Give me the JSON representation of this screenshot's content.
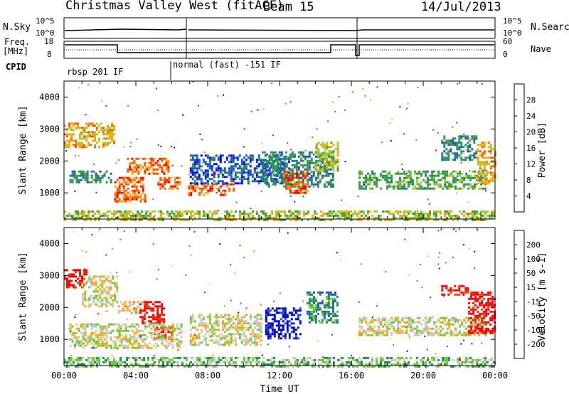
{
  "header": {
    "title": "Christmas Valley West (fitACF)",
    "beam": "Beam 15",
    "date": "14/Jul/2013"
  },
  "top_panels": {
    "nsky_label": "N.Sky",
    "nsky_ticks": [
      "10^5",
      "10^0"
    ],
    "nsearch_label": "N.Search",
    "nsearch_ticks": [
      "10^5",
      "10^0"
    ],
    "freq_label_1": "Freq.",
    "freq_label_2": "[MHz]",
    "freq_ticks": [
      "18",
      "8"
    ],
    "nave_label": "Nave",
    "nave_ticks": [
      "60",
      "0"
    ],
    "cpid_label": "CPID",
    "cpid_modes": [
      "rbsp 201 IF",
      "normal (fast) -151 IF"
    ]
  },
  "chart_data": [
    {
      "type": "heatmap",
      "name": "power",
      "ylabel": "Slant Range [km]",
      "ylim": [
        180,
        4500
      ],
      "yticks": [
        1000,
        2000,
        3000,
        4000
      ],
      "xlim": [
        0,
        24
      ],
      "colorbar": {
        "label": "Power [dB]",
        "ticks": [
          "28",
          "24",
          "20",
          "16",
          "12",
          "8",
          "4"
        ],
        "colors": [
          "#0000ff",
          "#1e4fc8",
          "#1f8a5a",
          "#3f9b3f",
          "#9acd32",
          "#ffa500",
          "#ff5a00",
          "#ff0000"
        ]
      },
      "regions": [
        {
          "t0": 0.0,
          "t1": 2.8,
          "r0": 2400,
          "r1": 3200,
          "level": 5
        },
        {
          "t0": 0.3,
          "t1": 2.6,
          "r0": 1300,
          "r1": 1700,
          "level": 2
        },
        {
          "t0": 2.8,
          "t1": 4.5,
          "r0": 700,
          "r1": 1500,
          "level": 6
        },
        {
          "t0": 3.5,
          "t1": 5.8,
          "r0": 1600,
          "r1": 2100,
          "level": 6
        },
        {
          "t0": 5.2,
          "t1": 6.4,
          "r0": 1100,
          "r1": 1500,
          "level": 6
        },
        {
          "t0": 6.9,
          "t1": 9.5,
          "r0": 900,
          "r1": 1300,
          "level": 6
        },
        {
          "t0": 7.0,
          "t1": 12.5,
          "r0": 1300,
          "r1": 2200,
          "level": 1
        },
        {
          "t0": 11.0,
          "t1": 15.0,
          "r0": 1200,
          "r1": 2300,
          "level": 2
        },
        {
          "t0": 12.2,
          "t1": 13.6,
          "r0": 1000,
          "r1": 1700,
          "level": 6
        },
        {
          "t0": 14.0,
          "t1": 15.3,
          "r0": 1700,
          "r1": 2600,
          "level": 4
        },
        {
          "t0": 16.4,
          "t1": 23.5,
          "r0": 1100,
          "r1": 1700,
          "level": 3
        },
        {
          "t0": 21.0,
          "t1": 23.0,
          "r0": 2000,
          "r1": 2800,
          "level": 2
        },
        {
          "t0": 23.0,
          "t1": 24.0,
          "r0": 1300,
          "r1": 2600,
          "level": 5
        },
        {
          "t0": 0.0,
          "t1": 24.0,
          "r0": 180,
          "r1": 450,
          "level": 4
        }
      ]
    },
    {
      "type": "heatmap",
      "name": "velocity",
      "xlabel": "Time UT",
      "ylabel": "Slant Range [km]",
      "ylim": [
        180,
        4500
      ],
      "yticks": [
        1000,
        2000,
        3000,
        4000
      ],
      "xlim": [
        0,
        24
      ],
      "xticks": [
        "00:00",
        "04:00",
        "08:00",
        "12:00",
        "16:00",
        "20:00",
        "00:00"
      ],
      "colorbar": {
        "label": "Velocity [m s-1]",
        "ticks": [
          "200",
          "100",
          "50",
          "15",
          "-15",
          "-50",
          "-100",
          "-200"
        ],
        "colors": [
          "#0000cc",
          "#1e4fc8",
          "#1f8a5a",
          "#66cc33",
          "#c8c8c0",
          "#ffa500",
          "#ff7000",
          "#ff4000",
          "#ff0000"
        ]
      },
      "regions": [
        {
          "t0": 0.0,
          "t1": 1.2,
          "r0": 2600,
          "r1": 3200,
          "level": 8
        },
        {
          "t0": 1.0,
          "t1": 3.0,
          "r0": 2000,
          "r1": 3000,
          "level": 4
        },
        {
          "t0": 3.0,
          "t1": 4.5,
          "r0": 1800,
          "r1": 2200,
          "level": 5
        },
        {
          "t0": 4.2,
          "t1": 5.6,
          "r0": 1500,
          "r1": 2200,
          "level": 8
        },
        {
          "t0": 5.0,
          "t1": 6.0,
          "r0": 1000,
          "r1": 1400,
          "level": 8
        },
        {
          "t0": 0.3,
          "t1": 6.5,
          "r0": 700,
          "r1": 1500,
          "level": 4
        },
        {
          "t0": 7.0,
          "t1": 11.0,
          "r0": 800,
          "r1": 1800,
          "level": 4
        },
        {
          "t0": 11.2,
          "t1": 13.2,
          "r0": 1000,
          "r1": 2000,
          "level": 0
        },
        {
          "t0": 13.5,
          "t1": 15.2,
          "r0": 1500,
          "r1": 2500,
          "level": 2
        },
        {
          "t0": 16.4,
          "t1": 23.5,
          "r0": 1100,
          "r1": 1700,
          "level": 4
        },
        {
          "t0": 21.0,
          "t1": 22.5,
          "r0": 2400,
          "r1": 2700,
          "level": 8
        },
        {
          "t0": 22.5,
          "t1": 24.0,
          "r0": 1200,
          "r1": 2500,
          "level": 8
        },
        {
          "t0": 0.0,
          "t1": 24.0,
          "r0": 180,
          "r1": 450,
          "level": 3
        }
      ]
    }
  ]
}
